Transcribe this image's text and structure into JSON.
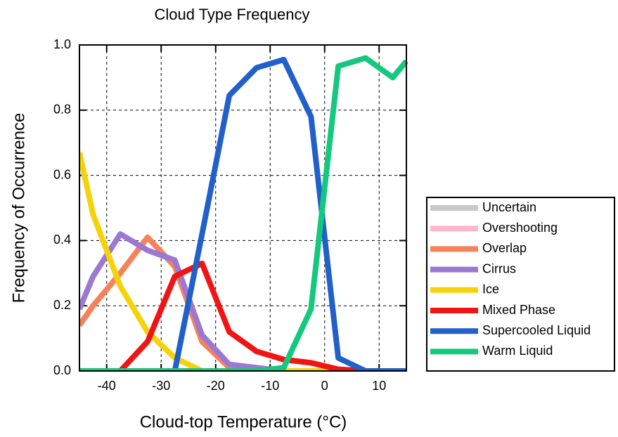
{
  "chart_data": {
    "type": "line",
    "title": "Cloud Type Frequency",
    "x_label": "Cloud-top Temperature (°C)",
    "y_label": "Frequency of Occurrence",
    "x": [
      -45,
      -42.5,
      -37.5,
      -32.5,
      -27.5,
      -22.5,
      -17.5,
      -12.5,
      -7.5,
      -2.5,
      2.5,
      7.5,
      12.5,
      15
    ],
    "xlim": [
      -45,
      15
    ],
    "xticks": [
      -40,
      -30,
      -20,
      -10,
      0,
      10
    ],
    "ylim": [
      0,
      1
    ],
    "yticks": [
      {
        "value": 0,
        "label": "0.0"
      },
      0.2,
      0.4,
      0.6,
      0.8,
      {
        "value": 1,
        "label": "1.0"
      }
    ],
    "grid": true,
    "series": [
      {
        "name": "Uncertain",
        "color": "#c8c8c8",
        "values": [
          0,
          0,
          0,
          0,
          0,
          0,
          0,
          0,
          0,
          0,
          0,
          0,
          0,
          0
        ]
      },
      {
        "name": "Overshooting",
        "color": "#ffb6c8",
        "values": [
          0,
          0,
          0,
          0,
          0,
          0,
          0,
          0,
          0,
          0,
          0,
          0,
          0,
          0
        ]
      },
      {
        "name": "Overlap",
        "color": "#f7825a",
        "values": [
          0.14,
          0.2,
          0.3,
          0.41,
          0.32,
          0.09,
          0.01,
          0,
          0,
          0,
          0,
          0,
          0,
          0
        ]
      },
      {
        "name": "Cirrus",
        "color": "#9b78d2",
        "values": [
          0.19,
          0.29,
          0.42,
          0.37,
          0.34,
          0.11,
          0.02,
          0.01,
          0,
          0,
          0,
          0,
          0,
          0
        ]
      },
      {
        "name": "Ice",
        "color": "#f5d20a",
        "values": [
          0.67,
          0.48,
          0.26,
          0.12,
          0.04,
          0,
          0,
          0,
          0,
          0,
          0,
          0,
          0,
          0
        ]
      },
      {
        "name": "Mixed Phase",
        "color": "#f01414",
        "values": [
          0,
          0,
          0,
          0.09,
          0.29,
          0.33,
          0.12,
          0.06,
          0.035,
          0.025,
          0.005,
          0,
          0,
          0
        ]
      },
      {
        "name": "Supercooled Liquid",
        "color": "#2060c8",
        "values": [
          0,
          0,
          0,
          0,
          0,
          0.42,
          0.845,
          0.93,
          0.955,
          0.78,
          0.04,
          0,
          0,
          0
        ]
      },
      {
        "name": "Warm Liquid",
        "color": "#14c87d",
        "values": [
          0,
          0,
          0,
          0,
          0,
          0,
          0,
          0,
          0.01,
          0.19,
          0.935,
          0.96,
          0.9,
          0.95
        ]
      }
    ]
  }
}
